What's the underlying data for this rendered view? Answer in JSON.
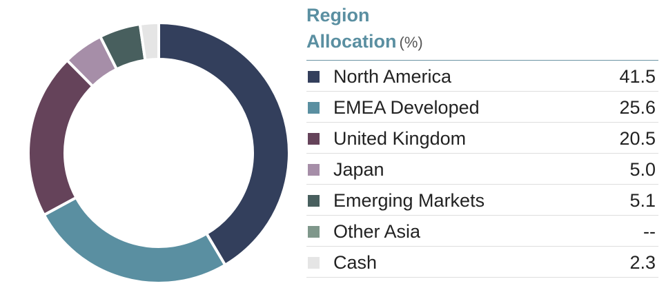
{
  "chart_data": {
    "type": "pie",
    "title": "Region",
    "title_line2": "Allocation",
    "unit": "(%)",
    "donut": true,
    "categories": [
      "North America",
      "EMEA Developed",
      "United Kingdom",
      "Japan",
      "Emerging Markets",
      "Other Asia",
      "Cash"
    ],
    "values": [
      41.5,
      25.6,
      20.5,
      5.0,
      5.1,
      0,
      2.3
    ],
    "value_labels": [
      "41.5",
      "25.6",
      "20.5",
      "5.0",
      "5.1",
      "--",
      "2.3"
    ],
    "colors": [
      "#333f5c",
      "#5a8fa1",
      "#65435a",
      "#a68ea8",
      "#485f5e",
      "#7f978b",
      "#e5e5e5"
    ],
    "legend_placement": "right"
  }
}
